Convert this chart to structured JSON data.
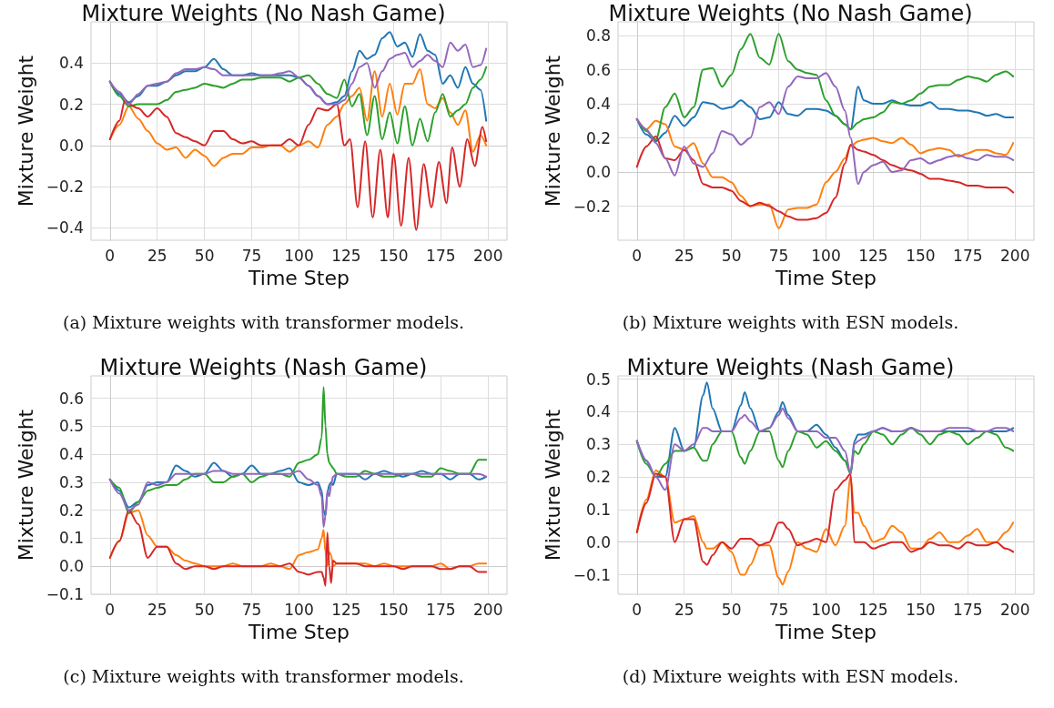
{
  "chart_data": [
    {
      "type": "line",
      "title": "Mixture Weights (No Nash Game)",
      "xlabel": "Time Step",
      "ylabel": "Mixture Weight",
      "annotations": [
        "(a) Mixture weights with transformer models."
      ],
      "grid": true,
      "xlim": [
        -10,
        210
      ],
      "xticks": [
        0,
        25,
        50,
        75,
        100,
        125,
        150,
        175,
        200
      ],
      "ylim": [
        -0.46,
        0.6
      ],
      "yticks": [
        {
          "value": -0.4,
          "label": "−0.4"
        },
        {
          "value": -0.2,
          "label": "−0.2"
        },
        {
          "value": 0,
          "label": "0.0"
        },
        {
          "value": 0.2,
          "label": "0.2"
        },
        {
          "value": 0.4,
          "label": "0.4"
        }
      ],
      "x": [
        0,
        5,
        10,
        15,
        20,
        25,
        30,
        35,
        40,
        45,
        50,
        55,
        60,
        65,
        70,
        75,
        80,
        85,
        90,
        95,
        100,
        105,
        110,
        115,
        120,
        124,
        128,
        132,
        136,
        140,
        144,
        148,
        152,
        156,
        160,
        164,
        168,
        172,
        176,
        180,
        184,
        188,
        192,
        196,
        199
      ],
      "series": [
        {
          "color": "#1f77b4",
          "values": [
            0.31,
            0.25,
            0.21,
            0.24,
            0.29,
            0.29,
            0.31,
            0.34,
            0.36,
            0.36,
            0.38,
            0.42,
            0.37,
            0.34,
            0.34,
            0.35,
            0.34,
            0.34,
            0.34,
            0.34,
            0.33,
            0.29,
            0.24,
            0.2,
            0.21,
            0.24,
            0.36,
            0.46,
            0.42,
            0.44,
            0.52,
            0.55,
            0.48,
            0.5,
            0.43,
            0.54,
            0.46,
            0.44,
            0.3,
            0.34,
            0.28,
            0.38,
            0.3,
            0.27,
            0.12
          ]
        },
        {
          "color": "#ff7f0e",
          "values": [
            0.03,
            0.1,
            0.19,
            0.13,
            0.07,
            0.01,
            -0.02,
            -0.01,
            -0.06,
            -0.02,
            -0.05,
            -0.1,
            -0.06,
            -0.04,
            -0.04,
            -0.01,
            -0.01,
            0.0,
            0.0,
            -0.03,
            0.0,
            0.02,
            -0.01,
            0.1,
            0.14,
            0.2,
            0.24,
            0.28,
            0.12,
            0.36,
            0.14,
            0.3,
            0.15,
            0.3,
            0.3,
            0.37,
            0.2,
            0.18,
            0.23,
            0.16,
            0.1,
            0.17,
            -0.03,
            0.05,
            0.0
          ]
        },
        {
          "color": "#2ca02c",
          "values": [
            0.31,
            0.24,
            0.19,
            0.2,
            0.2,
            0.2,
            0.22,
            0.26,
            0.27,
            0.28,
            0.3,
            0.29,
            0.28,
            0.3,
            0.32,
            0.32,
            0.33,
            0.33,
            0.33,
            0.31,
            0.33,
            0.34,
            0.3,
            0.25,
            0.23,
            0.32,
            0.19,
            0.25,
            0.05,
            0.24,
            0.03,
            0.16,
            0.01,
            0.19,
            0.0,
            0.13,
            0.02,
            0.16,
            0.25,
            0.14,
            0.17,
            0.2,
            0.28,
            0.32,
            0.38
          ]
        },
        {
          "color": "#d62728",
          "x": [
            0,
            5,
            8,
            10,
            15,
            20,
            25,
            30,
            35,
            40,
            45,
            50,
            55,
            60,
            65,
            70,
            75,
            80,
            85,
            90,
            95,
            100,
            105,
            110,
            115,
            120,
            124,
            127,
            131,
            135,
            139,
            143,
            147,
            150,
            154,
            158,
            162,
            166,
            170,
            174,
            178,
            181,
            185,
            189,
            193,
            197,
            199
          ],
          "values": [
            0.03,
            0.12,
            0.22,
            0.2,
            0.18,
            0.14,
            0.18,
            0.14,
            0.06,
            0.04,
            0.02,
            0.0,
            0.07,
            0.07,
            0.03,
            0.01,
            0.02,
            0.0,
            0.0,
            0.0,
            0.03,
            0.0,
            0.1,
            0.18,
            0.17,
            0.2,
            0.0,
            0.03,
            -0.3,
            0.02,
            -0.35,
            -0.02,
            -0.35,
            -0.04,
            -0.39,
            -0.06,
            -0.41,
            -0.09,
            -0.3,
            -0.08,
            -0.28,
            -0.01,
            -0.2,
            0.03,
            -0.1,
            0.09,
            0.02
          ]
        },
        {
          "color": "#9467bd",
          "values": [
            0.31,
            0.26,
            0.2,
            0.25,
            0.29,
            0.3,
            0.31,
            0.35,
            0.37,
            0.37,
            0.38,
            0.37,
            0.34,
            0.34,
            0.34,
            0.34,
            0.34,
            0.34,
            0.35,
            0.36,
            0.33,
            0.29,
            0.24,
            0.2,
            0.2,
            0.22,
            0.3,
            0.38,
            0.4,
            0.28,
            0.36,
            0.42,
            0.44,
            0.45,
            0.38,
            0.41,
            0.44,
            0.41,
            0.38,
            0.5,
            0.46,
            0.49,
            0.38,
            0.39,
            0.47
          ]
        }
      ]
    },
    {
      "type": "line",
      "title": "Mixture Weights (No Nash Game)",
      "xlabel": "Time Step",
      "ylabel": "Mixture Weight",
      "annotations": [
        "(b) Mixture weights with ESN models."
      ],
      "grid": true,
      "xlim": [
        -10,
        210
      ],
      "xticks": [
        0,
        25,
        50,
        75,
        100,
        125,
        150,
        175,
        200
      ],
      "ylim": [
        -0.4,
        0.88
      ],
      "yticks": [
        {
          "value": -0.2,
          "label": "−0.2"
        },
        {
          "value": 0,
          "label": "0.0"
        },
        {
          "value": 0.2,
          "label": "0.2"
        },
        {
          "value": 0.4,
          "label": "0.4"
        },
        {
          "value": 0.6,
          "label": "0.6"
        },
        {
          "value": 0.8,
          "label": "0.8"
        }
      ],
      "x": [
        0,
        5,
        10,
        15,
        20,
        25,
        30,
        35,
        40,
        45,
        50,
        55,
        60,
        65,
        70,
        75,
        80,
        85,
        90,
        95,
        100,
        105,
        110,
        113,
        117,
        120,
        125,
        130,
        135,
        140,
        145,
        150,
        155,
        160,
        165,
        170,
        175,
        180,
        185,
        190,
        195,
        199
      ],
      "series": [
        {
          "color": "#1f77b4",
          "values": [
            0.31,
            0.22,
            0.18,
            0.23,
            0.33,
            0.27,
            0.32,
            0.41,
            0.4,
            0.37,
            0.38,
            0.42,
            0.38,
            0.31,
            0.32,
            0.41,
            0.34,
            0.33,
            0.37,
            0.37,
            0.36,
            0.33,
            0.28,
            0.25,
            0.5,
            0.42,
            0.4,
            0.4,
            0.42,
            0.4,
            0.39,
            0.39,
            0.41,
            0.37,
            0.37,
            0.36,
            0.36,
            0.35,
            0.33,
            0.34,
            0.32,
            0.32
          ]
        },
        {
          "color": "#ff7f0e",
          "values": [
            0.31,
            0.25,
            0.3,
            0.28,
            0.15,
            0.13,
            0.17,
            0.05,
            -0.03,
            -0.03,
            -0.06,
            -0.14,
            -0.2,
            -0.19,
            -0.19,
            -0.33,
            -0.22,
            -0.21,
            -0.21,
            -0.19,
            -0.06,
            0.0,
            0.08,
            0.15,
            0.18,
            0.19,
            0.2,
            0.18,
            0.17,
            0.2,
            0.16,
            0.11,
            0.13,
            0.14,
            0.13,
            0.09,
            0.11,
            0.13,
            0.13,
            0.11,
            0.1,
            0.17
          ]
        },
        {
          "color": "#2ca02c",
          "values": [
            0.31,
            0.24,
            0.19,
            0.38,
            0.46,
            0.32,
            0.38,
            0.6,
            0.61,
            0.5,
            0.57,
            0.72,
            0.81,
            0.67,
            0.63,
            0.81,
            0.65,
            0.6,
            0.58,
            0.57,
            0.42,
            0.33,
            0.28,
            0.25,
            0.29,
            0.31,
            0.32,
            0.35,
            0.41,
            0.4,
            0.42,
            0.46,
            0.5,
            0.51,
            0.51,
            0.54,
            0.56,
            0.55,
            0.53,
            0.57,
            0.59,
            0.56
          ]
        },
        {
          "color": "#d62728",
          "values": [
            0.03,
            0.15,
            0.21,
            0.08,
            0.07,
            0.13,
            0.07,
            -0.07,
            -0.09,
            -0.09,
            -0.11,
            -0.17,
            -0.2,
            -0.18,
            -0.2,
            -0.23,
            -0.26,
            -0.28,
            -0.28,
            -0.27,
            -0.24,
            -0.15,
            0.05,
            0.16,
            0.13,
            0.12,
            0.1,
            0.07,
            0.04,
            0.02,
            0.01,
            -0.01,
            -0.04,
            -0.04,
            -0.05,
            -0.06,
            -0.08,
            -0.08,
            -0.09,
            -0.09,
            -0.09,
            -0.12
          ]
        },
        {
          "color": "#9467bd",
          "values": [
            0.31,
            0.25,
            0.17,
            0.08,
            -0.02,
            0.15,
            0.05,
            0.03,
            0.11,
            0.24,
            0.22,
            0.16,
            0.2,
            0.38,
            0.41,
            0.34,
            0.5,
            0.56,
            0.55,
            0.55,
            0.58,
            0.5,
            0.36,
            0.2,
            -0.07,
            0.0,
            0.04,
            0.06,
            0.0,
            0.01,
            0.07,
            0.08,
            0.05,
            0.07,
            0.09,
            0.1,
            0.08,
            0.07,
            0.1,
            0.09,
            0.09,
            0.07
          ]
        }
      ]
    },
    {
      "type": "line",
      "title": "Mixture Weights (Nash Game)",
      "xlabel": "Time Step",
      "ylabel": "Mixture Weight",
      "annotations": [
        "(c) Mixture weights with transformer models."
      ],
      "grid": true,
      "xlim": [
        -10,
        210
      ],
      "xticks": [
        0,
        25,
        50,
        75,
        100,
        125,
        150,
        175,
        200
      ],
      "ylim": [
        -0.1,
        0.68
      ],
      "yticks": [
        {
          "value": -0.1,
          "label": "−0.1"
        },
        {
          "value": 0,
          "label": "0.0"
        },
        {
          "value": 0.1,
          "label": "0.1"
        },
        {
          "value": 0.2,
          "label": "0.2"
        },
        {
          "value": 0.3,
          "label": "0.3"
        },
        {
          "value": 0.4,
          "label": "0.4"
        },
        {
          "value": 0.5,
          "label": "0.5"
        },
        {
          "value": 0.6,
          "label": "0.6"
        }
      ],
      "x": [
        0,
        5,
        10,
        15,
        20,
        25,
        30,
        35,
        40,
        45,
        50,
        55,
        60,
        65,
        70,
        75,
        80,
        85,
        90,
        95,
        100,
        105,
        110,
        112,
        113,
        114,
        115,
        116,
        117,
        118,
        120,
        125,
        130,
        135,
        140,
        145,
        150,
        155,
        160,
        165,
        170,
        175,
        180,
        185,
        190,
        195,
        199
      ],
      "series": [
        {
          "color": "#1f77b4",
          "values": [
            0.31,
            0.27,
            0.21,
            0.23,
            0.29,
            0.3,
            0.3,
            0.36,
            0.34,
            0.32,
            0.33,
            0.37,
            0.34,
            0.32,
            0.33,
            0.36,
            0.33,
            0.33,
            0.34,
            0.35,
            0.3,
            0.29,
            0.3,
            0.27,
            0.2,
            0.18,
            0.26,
            0.29,
            0.3,
            0.29,
            0.33,
            0.33,
            0.33,
            0.31,
            0.33,
            0.34,
            0.33,
            0.32,
            0.33,
            0.34,
            0.33,
            0.33,
            0.31,
            0.33,
            0.33,
            0.31,
            0.32
          ]
        },
        {
          "color": "#ff7f0e",
          "values": [
            0.03,
            0.09,
            0.19,
            0.2,
            0.11,
            0.07,
            0.07,
            0.04,
            0.02,
            0.01,
            0.0,
            0.0,
            0.0,
            0.01,
            0.0,
            0.0,
            0.0,
            0.01,
            0.0,
            -0.01,
            0.04,
            0.05,
            0.06,
            0.1,
            0.13,
            0.05,
            0.0,
            0.05,
            0.04,
            0.0,
            0.01,
            0.01,
            0.01,
            0.01,
            0.0,
            0.01,
            0.0,
            0.0,
            0.0,
            0.0,
            0.0,
            0.01,
            -0.01,
            0.0,
            0.0,
            0.01,
            0.01
          ]
        },
        {
          "color": "#2ca02c",
          "values": [
            0.31,
            0.28,
            0.19,
            0.23,
            0.27,
            0.28,
            0.29,
            0.29,
            0.31,
            0.33,
            0.33,
            0.3,
            0.3,
            0.32,
            0.33,
            0.3,
            0.32,
            0.33,
            0.33,
            0.32,
            0.37,
            0.38,
            0.4,
            0.46,
            0.64,
            0.5,
            0.4,
            0.37,
            0.36,
            0.35,
            0.33,
            0.32,
            0.32,
            0.34,
            0.33,
            0.32,
            0.32,
            0.33,
            0.33,
            0.32,
            0.32,
            0.35,
            0.34,
            0.33,
            0.33,
            0.38,
            0.38
          ]
        },
        {
          "color": "#d62728",
          "values": [
            0.03,
            0.09,
            0.2,
            0.15,
            0.03,
            0.07,
            0.07,
            0.01,
            -0.01,
            0.0,
            0.0,
            -0.01,
            0.0,
            0.0,
            0.0,
            0.0,
            0.0,
            0.0,
            0.0,
            0.01,
            -0.02,
            -0.03,
            -0.02,
            -0.02,
            -0.04,
            -0.07,
            0.12,
            0.0,
            -0.06,
            0.02,
            0.01,
            0.01,
            0.01,
            0.0,
            0.0,
            0.0,
            0.0,
            -0.01,
            0.0,
            0.0,
            0.0,
            -0.01,
            -0.01,
            0.0,
            0.0,
            -0.02,
            -0.02
          ]
        },
        {
          "color": "#9467bd",
          "values": [
            0.31,
            0.26,
            0.2,
            0.22,
            0.3,
            0.29,
            0.3,
            0.33,
            0.33,
            0.33,
            0.33,
            0.34,
            0.34,
            0.33,
            0.33,
            0.33,
            0.33,
            0.33,
            0.33,
            0.33,
            0.34,
            0.31,
            0.29,
            0.25,
            0.14,
            0.18,
            0.27,
            0.25,
            0.29,
            0.32,
            0.33,
            0.33,
            0.33,
            0.33,
            0.33,
            0.33,
            0.33,
            0.33,
            0.33,
            0.33,
            0.33,
            0.33,
            0.33,
            0.33,
            0.33,
            0.33,
            0.32
          ]
        }
      ]
    },
    {
      "type": "line",
      "title": "Mixture Weights (Nash Game)",
      "xlabel": "Time Step",
      "ylabel": "Mixture Weight",
      "annotations": [
        "(d) Mixture weights with ESN models."
      ],
      "grid": true,
      "xlim": [
        -10,
        210
      ],
      "xticks": [
        0,
        25,
        50,
        75,
        100,
        125,
        150,
        175,
        200
      ],
      "ylim": [
        -0.16,
        0.51
      ],
      "yticks": [
        {
          "value": -0.1,
          "label": "−0.1"
        },
        {
          "value": 0,
          "label": "0.0"
        },
        {
          "value": 0.1,
          "label": "0.1"
        },
        {
          "value": 0.2,
          "label": "0.2"
        },
        {
          "value": 0.3,
          "label": "0.3"
        },
        {
          "value": 0.4,
          "label": "0.4"
        },
        {
          "value": 0.5,
          "label": "0.5"
        }
      ],
      "x": [
        0,
        5,
        10,
        15,
        20,
        25,
        30,
        35,
        37,
        40,
        45,
        50,
        55,
        57,
        60,
        65,
        70,
        75,
        77,
        80,
        85,
        90,
        95,
        100,
        105,
        110,
        113,
        115,
        117,
        120,
        125,
        130,
        135,
        140,
        145,
        150,
        155,
        160,
        165,
        170,
        175,
        180,
        185,
        190,
        195,
        199
      ],
      "series": [
        {
          "color": "#1f77b4",
          "values": [
            0.31,
            0.25,
            0.2,
            0.2,
            0.35,
            0.28,
            0.29,
            0.45,
            0.49,
            0.41,
            0.34,
            0.34,
            0.42,
            0.46,
            0.41,
            0.34,
            0.35,
            0.4,
            0.43,
            0.39,
            0.34,
            0.34,
            0.36,
            0.33,
            0.29,
            0.25,
            0.21,
            0.31,
            0.33,
            0.33,
            0.34,
            0.35,
            0.34,
            0.34,
            0.35,
            0.34,
            0.34,
            0.34,
            0.34,
            0.34,
            0.34,
            0.34,
            0.34,
            0.34,
            0.34,
            0.35
          ]
        },
        {
          "color": "#ff7f0e",
          "values": [
            0.03,
            0.13,
            0.22,
            0.2,
            0.06,
            0.07,
            0.08,
            0.0,
            -0.02,
            -0.02,
            0.0,
            -0.03,
            -0.1,
            -0.1,
            -0.07,
            -0.01,
            -0.01,
            -0.11,
            -0.13,
            -0.09,
            0.0,
            -0.02,
            -0.03,
            0.04,
            -0.01,
            0.05,
            0.2,
            0.09,
            0.09,
            0.05,
            0.0,
            0.01,
            0.05,
            0.03,
            -0.02,
            -0.02,
            0.01,
            0.03,
            0.0,
            0.0,
            0.02,
            0.04,
            0.0,
            0.0,
            0.03,
            0.06
          ]
        },
        {
          "color": "#2ca02c",
          "values": [
            0.31,
            0.24,
            0.2,
            0.24,
            0.28,
            0.28,
            0.29,
            0.25,
            0.25,
            0.3,
            0.34,
            0.34,
            0.26,
            0.24,
            0.28,
            0.34,
            0.34,
            0.25,
            0.23,
            0.28,
            0.34,
            0.33,
            0.29,
            0.31,
            0.28,
            0.25,
            0.21,
            0.28,
            0.27,
            0.3,
            0.34,
            0.33,
            0.3,
            0.33,
            0.35,
            0.33,
            0.3,
            0.33,
            0.34,
            0.33,
            0.3,
            0.32,
            0.34,
            0.33,
            0.29,
            0.28
          ]
        },
        {
          "color": "#d62728",
          "values": [
            0.03,
            0.12,
            0.21,
            0.2,
            0.0,
            0.07,
            0.07,
            -0.06,
            -0.07,
            -0.04,
            0.0,
            -0.02,
            0.01,
            0.01,
            0.01,
            -0.01,
            0.0,
            0.06,
            0.06,
            0.04,
            -0.01,
            0.0,
            0.01,
            0.0,
            0.16,
            0.19,
            0.21,
            0.0,
            0.0,
            0.0,
            -0.02,
            -0.01,
            0.0,
            0.0,
            -0.03,
            -0.02,
            0.0,
            -0.01,
            -0.01,
            -0.02,
            0.0,
            -0.01,
            -0.01,
            0.0,
            -0.02,
            -0.03
          ]
        },
        {
          "color": "#9467bd",
          "values": [
            0.31,
            0.25,
            0.2,
            0.16,
            0.3,
            0.28,
            0.3,
            0.35,
            0.35,
            0.34,
            0.34,
            0.34,
            0.38,
            0.39,
            0.37,
            0.34,
            0.35,
            0.39,
            0.41,
            0.38,
            0.34,
            0.34,
            0.34,
            0.32,
            0.32,
            0.28,
            0.21,
            0.3,
            0.31,
            0.32,
            0.34,
            0.35,
            0.34,
            0.34,
            0.35,
            0.34,
            0.34,
            0.34,
            0.35,
            0.35,
            0.35,
            0.34,
            0.34,
            0.35,
            0.35,
            0.34
          ]
        }
      ]
    }
  ]
}
